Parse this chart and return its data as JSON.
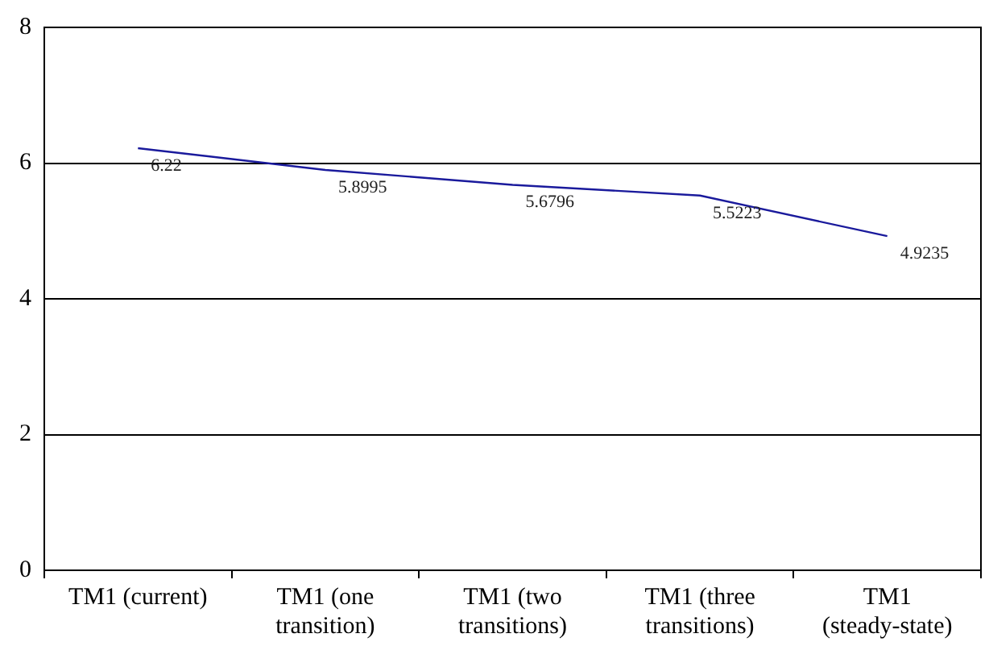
{
  "chart_data": {
    "type": "line",
    "categories": [
      "TM1 (current)",
      "TM1 (one transition)",
      "TM1 (two transitions)",
      "TM1 (three transitions)",
      "TM1 (steady-state)"
    ],
    "series": [
      {
        "color": "#1a1a9c",
        "values": [
          6.22,
          5.8995,
          5.6796,
          5.5223,
          4.9235
        ]
      }
    ],
    "ylim": [
      0,
      8
    ],
    "yticks": [
      0,
      2,
      4,
      6,
      8
    ],
    "grid": "y",
    "legend": false,
    "marker": "none",
    "data_labels": true
  }
}
